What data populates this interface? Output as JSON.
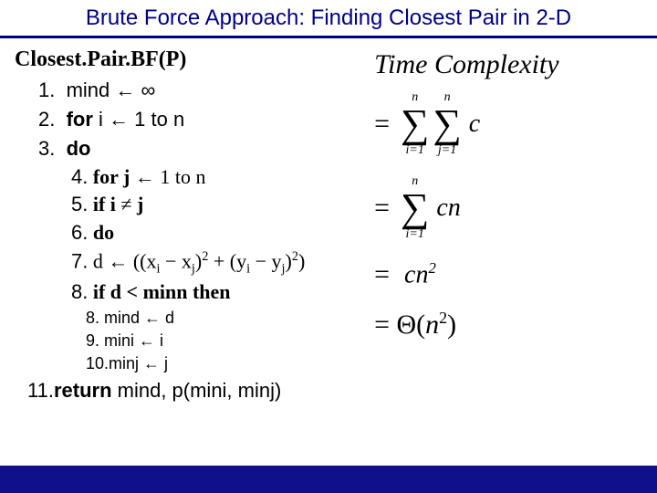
{
  "title": "Brute Force Approach: Finding Closest Pair in 2-D",
  "fn_name": "Closest.Pair.BF(P)",
  "algo": {
    "s1_num": "1.",
    "s1": "mind ← ∞",
    "s2_num": "2.",
    "s2a": "for",
    "s2b": " i ← 1 to n",
    "s3_num": "3.",
    "s3": "do",
    "s4_num": "4.",
    "s4a": "for j",
    "s4b": " ← 1 to n",
    "s5_num": "5.",
    "s5a": "if i",
    "s5_ne": " ≠ ",
    "s5b": "j",
    "s6_num": "6.",
    "s6": "do",
    "s7_num": "7.",
    "s7_pre": "d ← ((x",
    "s7_i": "i",
    "s7_m1": " − x",
    "s7_j": "j",
    "s7_rp": ")",
    "s7_sq": "2",
    "s7_plus": " + (y",
    "s7_i2": "i",
    "s7_m2": " − y",
    "s7_j2": "j",
    "s7_rp2": ")",
    "s7_sq2": "2",
    "s7_end": ")",
    "s8_num": "8.",
    "s8a": "if d < minn then",
    "s8b_num": "8.",
    "s8b": "mind ← d",
    "s9_num": "9.",
    "s9": "mini ← i",
    "s10_num": "10.",
    "s10": "minj ← j",
    "s11_num": "11.",
    "s11a": "return",
    "s11b": " mind, p(mini, minj)"
  },
  "math": {
    "tc_label": "Time Complexity",
    "row1": {
      "eq": "=",
      "sum1_top": "n",
      "sum1_bot": "i=1",
      "sum2_top": "n",
      "sum2_bot": "j=1",
      "term": "c"
    },
    "row2": {
      "eq": "=",
      "sum_top": "n",
      "sum_bot": "i=1",
      "term": "cn"
    },
    "row3": {
      "eq": "=",
      "term_a": "cn",
      "term_exp": "2"
    },
    "row4": {
      "eq": "=",
      "theta": "Θ(",
      "n": "n",
      "exp": "2",
      "close": ")"
    }
  },
  "colors": {
    "title_color": "#000088",
    "footer_color": "#10108c",
    "bg": "#ffffff"
  }
}
